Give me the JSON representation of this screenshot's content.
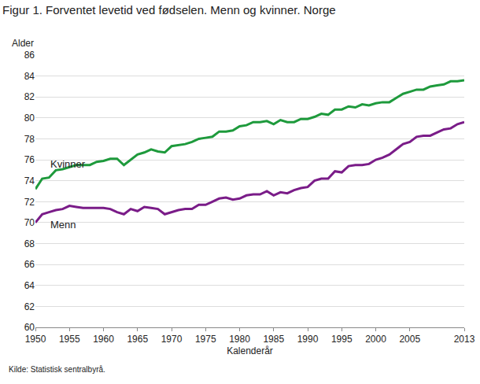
{
  "chart_data": {
    "type": "line",
    "title": "Figur 1. Forventet levetid ved fødselen. Menn og kvinner. Norge",
    "y_label": "Alder",
    "x_label": "Kalenderår",
    "source": "Kilde: Statistisk sentralbyrå.",
    "x": [
      1950,
      1951,
      1952,
      1953,
      1954,
      1955,
      1956,
      1957,
      1958,
      1959,
      1960,
      1961,
      1962,
      1963,
      1964,
      1965,
      1966,
      1967,
      1968,
      1969,
      1970,
      1971,
      1972,
      1973,
      1974,
      1975,
      1976,
      1977,
      1978,
      1979,
      1980,
      1981,
      1982,
      1983,
      1984,
      1985,
      1986,
      1987,
      1988,
      1989,
      1990,
      1991,
      1992,
      1993,
      1994,
      1995,
      1996,
      1997,
      1998,
      1999,
      2000,
      2001,
      2002,
      2003,
      2004,
      2005,
      2006,
      2007,
      2008,
      2009,
      2010,
      2011,
      2012,
      2013
    ],
    "series": [
      {
        "name": "Kvinner",
        "color": "#1e9a3c",
        "values": [
          73.2,
          74.2,
          74.3,
          75.0,
          75.1,
          75.3,
          75.5,
          75.5,
          75.5,
          75.8,
          75.9,
          76.1,
          76.1,
          75.5,
          76.0,
          76.5,
          76.7,
          77.0,
          76.8,
          76.7,
          77.3,
          77.4,
          77.5,
          77.7,
          78.0,
          78.1,
          78.2,
          78.7,
          78.7,
          78.8,
          79.2,
          79.3,
          79.6,
          79.6,
          79.7,
          79.4,
          79.8,
          79.6,
          79.6,
          79.9,
          79.9,
          80.1,
          80.4,
          80.3,
          80.8,
          80.8,
          81.1,
          81.0,
          81.3,
          81.2,
          81.4,
          81.5,
          81.5,
          81.9,
          82.3,
          82.5,
          82.7,
          82.7,
          83.0,
          83.1,
          83.2,
          83.5,
          83.5,
          83.6
        ]
      },
      {
        "name": "Menn",
        "color": "#7a1c88",
        "values": [
          70.0,
          70.8,
          71.0,
          71.2,
          71.3,
          71.6,
          71.5,
          71.4,
          71.4,
          71.4,
          71.4,
          71.3,
          71.0,
          70.8,
          71.3,
          71.1,
          71.5,
          71.4,
          71.3,
          70.8,
          71.0,
          71.2,
          71.3,
          71.3,
          71.7,
          71.7,
          72.0,
          72.3,
          72.4,
          72.2,
          72.3,
          72.6,
          72.7,
          72.7,
          73.0,
          72.6,
          72.9,
          72.8,
          73.1,
          73.3,
          73.4,
          74.0,
          74.2,
          74.2,
          74.9,
          74.8,
          75.4,
          75.5,
          75.5,
          75.6,
          76.0,
          76.2,
          76.5,
          77.0,
          77.5,
          77.7,
          78.2,
          78.3,
          78.3,
          78.6,
          78.9,
          79.0,
          79.4,
          79.6
        ]
      }
    ],
    "xlim": [
      1950,
      2013
    ],
    "xticks": [
      1950,
      1955,
      1960,
      1965,
      1970,
      1975,
      1980,
      1985,
      1990,
      1995,
      2000,
      2005,
      2013
    ],
    "ylim": [
      60,
      86
    ],
    "yticks": [
      60,
      62,
      64,
      66,
      68,
      70,
      72,
      74,
      76,
      78,
      80,
      82,
      84,
      86
    ],
    "grid": true
  }
}
